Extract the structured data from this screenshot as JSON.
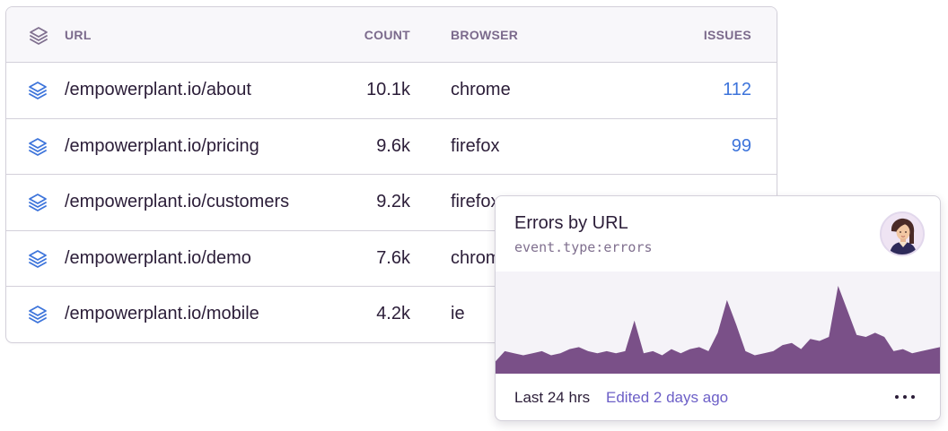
{
  "table": {
    "headers": {
      "url": "URL",
      "count": "COUNT",
      "browser": "BROWSER",
      "issues": "ISSUES"
    },
    "rows": [
      {
        "url": "/empowerplant.io/about",
        "count": "10.1k",
        "browser": "chrome",
        "issues": "112"
      },
      {
        "url": "/empowerplant.io/pricing",
        "count": "9.6k",
        "browser": "firefox",
        "issues": "99"
      },
      {
        "url": "/empowerplant.io/customers",
        "count": "9.2k",
        "browser": "firefox",
        "issues": ""
      },
      {
        "url": "/empowerplant.io/demo",
        "count": "7.6k",
        "browser": "chrome",
        "issues": ""
      },
      {
        "url": "/empowerplant.io/mobile",
        "count": "4.2k",
        "browser": "ie",
        "issues": ""
      }
    ],
    "row_icon": "layers-icon"
  },
  "widget": {
    "title": "Errors by URL",
    "query": "event.type:errors",
    "footer_range": "Last 24 hrs",
    "footer_edited": "Edited 2 days ago",
    "more_icon": "ellipsis-icon",
    "avatar": "user-avatar"
  },
  "chart_data": {
    "type": "area",
    "series": [
      {
        "values": [
          12,
          22,
          20,
          18,
          20,
          22,
          18,
          20,
          24,
          26,
          22,
          20,
          22,
          20,
          22,
          52,
          20,
          22,
          18,
          24,
          20,
          24,
          26,
          22,
          40,
          72,
          48,
          22,
          18,
          20,
          22,
          28,
          30,
          24,
          34,
          32,
          36,
          86,
          62,
          38,
          36,
          40,
          36,
          22,
          24,
          20,
          22,
          24,
          26
        ]
      }
    ],
    "colors": {
      "area": "#7a5088"
    }
  }
}
